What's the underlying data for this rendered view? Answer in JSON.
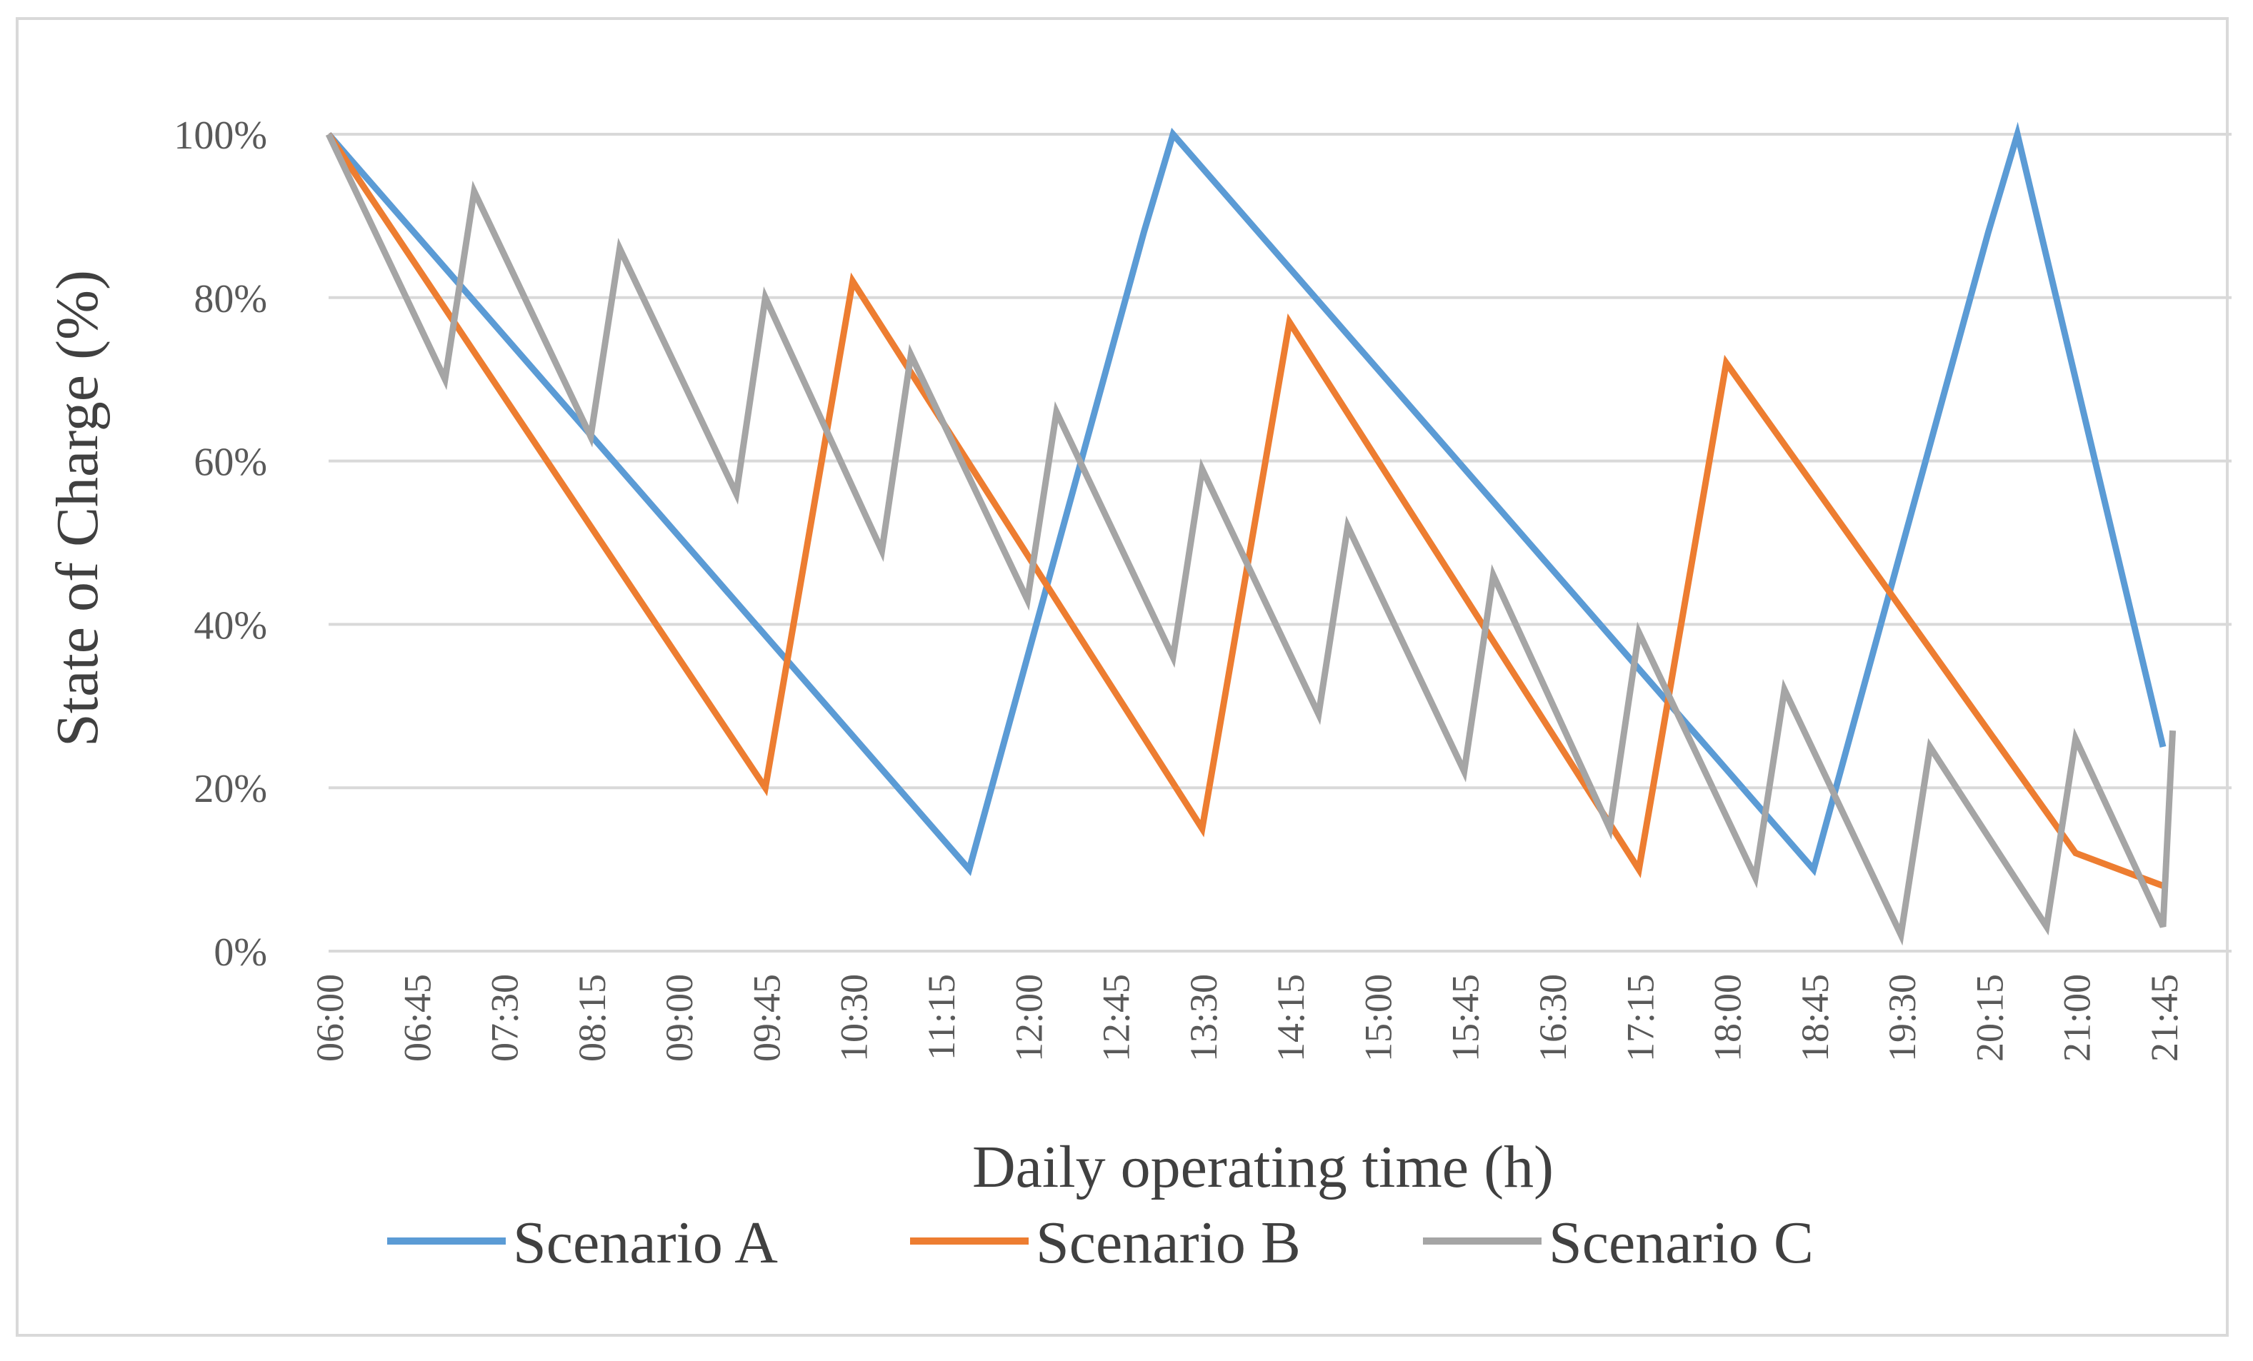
{
  "chart_data": {
    "type": "line",
    "title": "",
    "xlabel": "Daily operating time (h)",
    "ylabel": "State of Charge (%)",
    "ylim": [
      0,
      100
    ],
    "yticks": [
      0,
      20,
      40,
      60,
      80,
      100
    ],
    "ytick_labels": [
      "0%",
      "20%",
      "40%",
      "60%",
      "80%",
      "100%"
    ],
    "x_ticks": [
      "06:00",
      "06:45",
      "07:30",
      "08:15",
      "09:00",
      "09:45",
      "10:30",
      "11:15",
      "12:00",
      "12:45",
      "13:30",
      "14:15",
      "15:00",
      "15:45",
      "16:30",
      "17:15",
      "18:00",
      "18:45",
      "19:30",
      "20:15",
      "21:00",
      "21:45"
    ],
    "x_unit": "minutes since 06:00",
    "xlim": [
      0,
      945
    ],
    "grid": true,
    "legend_position": "bottom",
    "series": [
      {
        "name": "Scenario A",
        "color": "#5b9bd5",
        "points": [
          [
            0,
            100
          ],
          [
            330,
            10
          ],
          [
            420,
            88
          ],
          [
            435,
            100
          ],
          [
            765,
            10
          ],
          [
            855,
            88
          ],
          [
            870,
            100
          ],
          [
            945,
            25
          ]
        ]
      },
      {
        "name": "Scenario B",
        "color": "#ed7d31",
        "points": [
          [
            0,
            100
          ],
          [
            225,
            20
          ],
          [
            270,
            82
          ],
          [
            450,
            15
          ],
          [
            495,
            77
          ],
          [
            675,
            10
          ],
          [
            720,
            72
          ],
          [
            900,
            12
          ],
          [
            945,
            8
          ]
        ]
      },
      {
        "name": "Scenario C",
        "color": "#a5a5a5",
        "points": [
          [
            0,
            100
          ],
          [
            60,
            70
          ],
          [
            75,
            93
          ],
          [
            135,
            63
          ],
          [
            150,
            86
          ],
          [
            210,
            56
          ],
          [
            225,
            80
          ],
          [
            285,
            49
          ],
          [
            300,
            73
          ],
          [
            360,
            43
          ],
          [
            375,
            66
          ],
          [
            435,
            36
          ],
          [
            450,
            59
          ],
          [
            510,
            29
          ],
          [
            525,
            52
          ],
          [
            585,
            22
          ],
          [
            600,
            46
          ],
          [
            660,
            15
          ],
          [
            675,
            39
          ],
          [
            735,
            9
          ],
          [
            750,
            32
          ],
          [
            810,
            2
          ],
          [
            825,
            25
          ],
          [
            885,
            3
          ],
          [
            900,
            26
          ],
          [
            945,
            3
          ],
          [
            950,
            27
          ]
        ]
      }
    ]
  }
}
